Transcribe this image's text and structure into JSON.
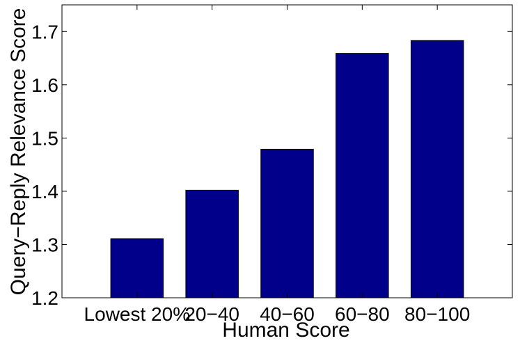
{
  "chart_data": {
    "type": "bar",
    "title": "",
    "xlabel": "Human Score",
    "ylabel": "Query−Reply Relevance Score",
    "categories": [
      "Lowest 20%",
      "20−40",
      "40−60",
      "60−80",
      "80−100"
    ],
    "values": [
      1.311,
      1.402,
      1.479,
      1.659,
      1.683
    ],
    "ylim": [
      1.2,
      1.75
    ],
    "yticks": [
      1.2,
      1.3,
      1.4,
      1.5,
      1.6,
      1.7
    ],
    "ytick_labels": [
      "1.2",
      "1.3",
      "1.4",
      "1.5",
      "1.6",
      "1.7"
    ],
    "grid": false,
    "legend": "none",
    "colors": {
      "bar": "#00008b",
      "bar_edge": "#000000",
      "axis": "#000000",
      "background": "#ffffff"
    }
  }
}
